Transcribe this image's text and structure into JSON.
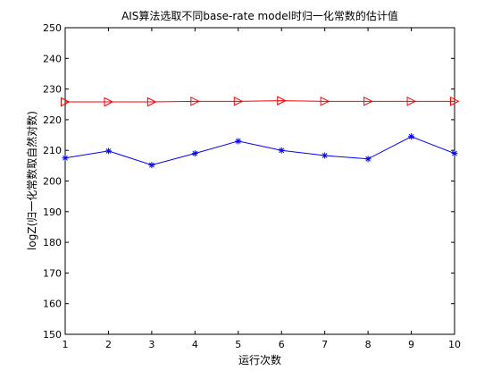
{
  "chart_data": {
    "type": "line",
    "title": "AIS算法选取不同base-rate model时归一化常数的估计值",
    "xlabel": "运行次数",
    "ylabel": "logZ(归一化常数取自然对数)",
    "x": [
      1,
      2,
      3,
      4,
      5,
      6,
      7,
      8,
      9,
      10
    ],
    "xlim": [
      1,
      10
    ],
    "ylim": [
      150,
      250
    ],
    "xticks": [
      "1",
      "2",
      "3",
      "4",
      "5",
      "6",
      "7",
      "8",
      "9",
      "10"
    ],
    "yticks": [
      "150",
      "160",
      "170",
      "180",
      "190",
      "200",
      "210",
      "220",
      "230",
      "240",
      "250"
    ],
    "grid": false,
    "legend": "none",
    "series": [
      {
        "color": "#ff0000",
        "marker": "triangle-right",
        "values": [
          225.8,
          225.8,
          225.8,
          226.0,
          226.0,
          226.2,
          226.0,
          226.0,
          226.0,
          226.0
        ]
      },
      {
        "color": "#0000ff",
        "marker": "asterisk",
        "values": [
          207.5,
          209.8,
          205.2,
          209.0,
          213.0,
          210.0,
          208.3,
          207.2,
          214.5,
          209.0
        ]
      }
    ]
  }
}
